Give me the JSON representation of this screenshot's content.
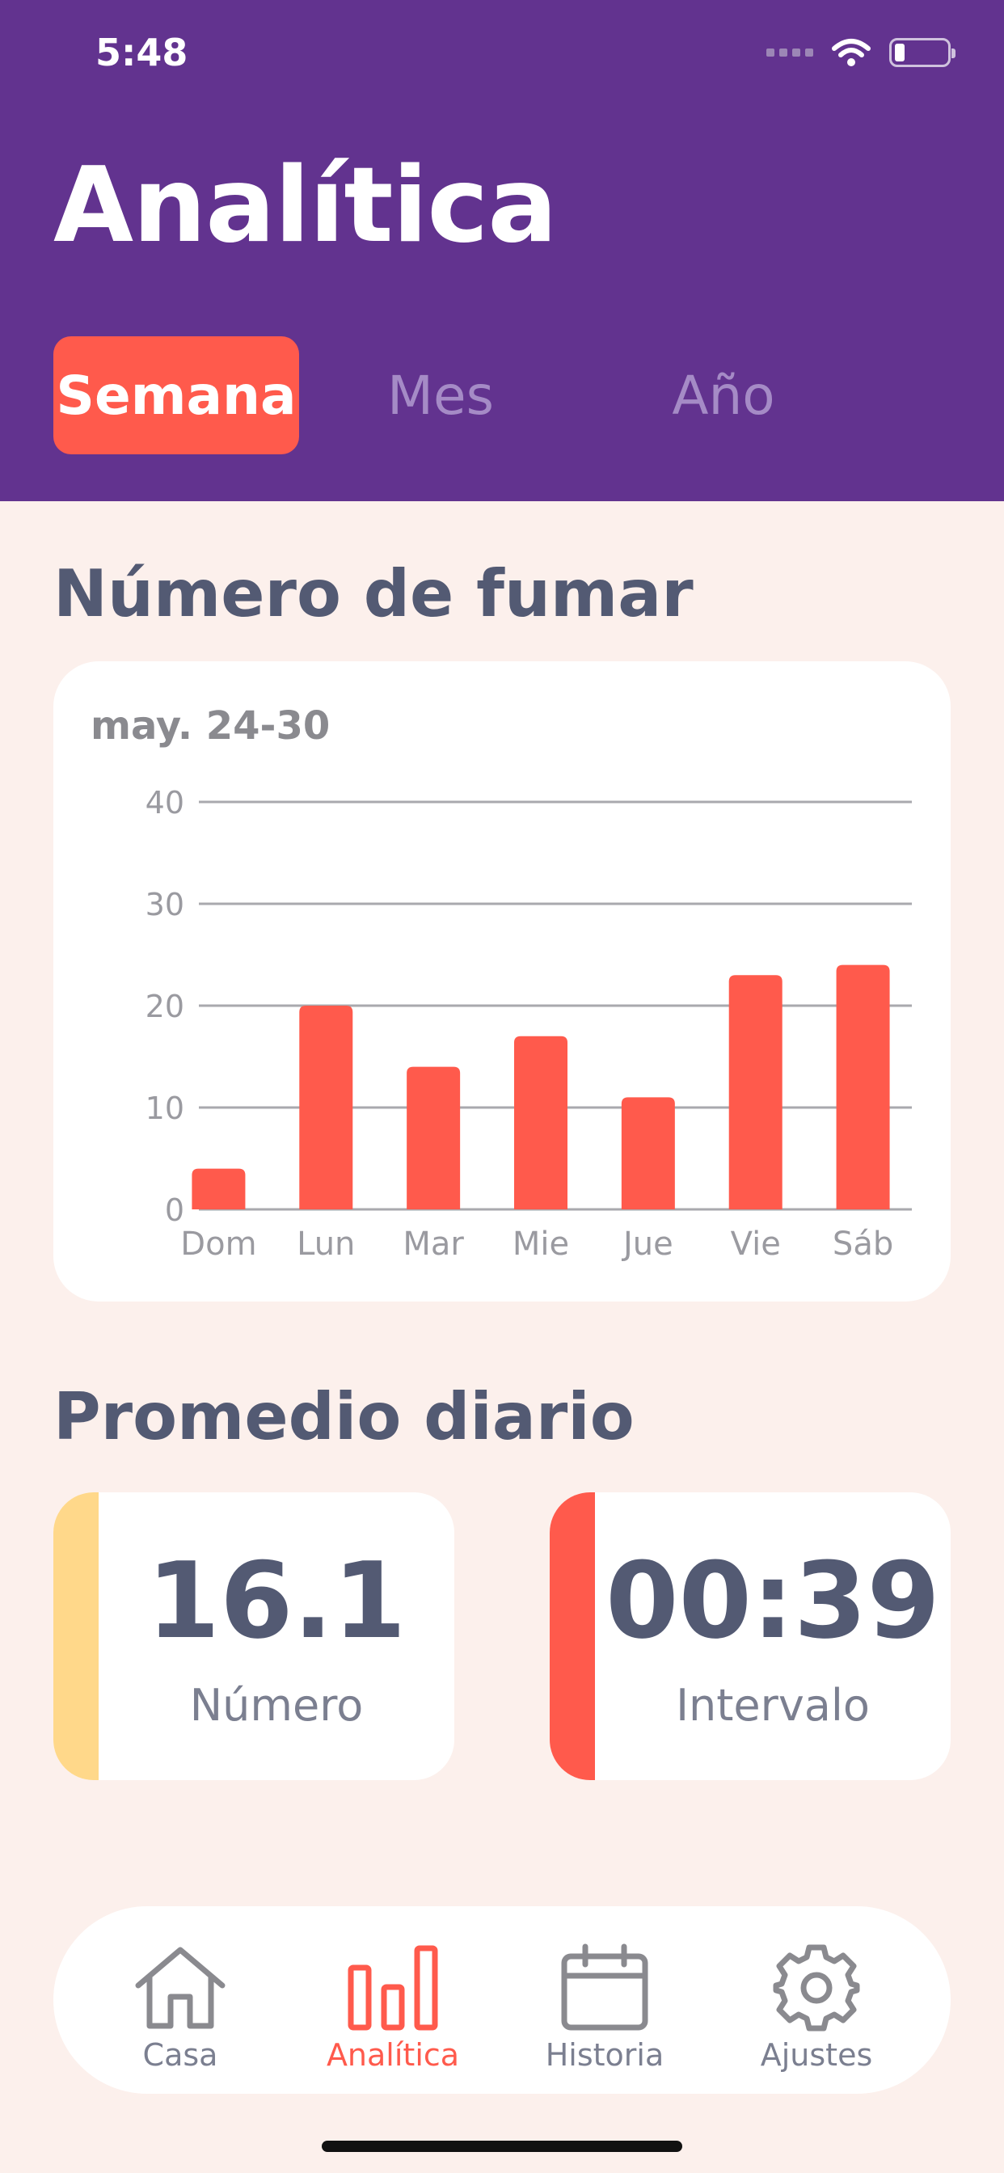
{
  "status_bar": {
    "time": "5:48"
  },
  "header": {
    "title": "Analítica"
  },
  "tabs": [
    {
      "label": "Semana",
      "active": true
    },
    {
      "label": "Mes",
      "active": false
    },
    {
      "label": "Año",
      "active": false
    }
  ],
  "smoking_section": {
    "title": "Número de fumar",
    "range": "may. 24-30"
  },
  "chart_data": {
    "type": "bar",
    "categories": [
      "Dom",
      "Lun",
      "Mar",
      "Mie",
      "Jue",
      "Vie",
      "Sáb"
    ],
    "values": [
      4,
      20,
      14,
      17,
      11,
      23,
      24
    ],
    "yticks": [
      0,
      10,
      20,
      30,
      40
    ],
    "ylim": [
      0,
      40
    ],
    "grid": true,
    "bar_color": "#FF5A4C"
  },
  "average_section": {
    "title": "Promedio diario",
    "number": {
      "value": "16.1",
      "label": "Número",
      "accent": "#FFD88A"
    },
    "interval": {
      "value": "00:39",
      "label": "Intervalo",
      "accent": "#FF5A4C"
    }
  },
  "nav": {
    "items": [
      {
        "label": "Casa",
        "icon": "home-icon",
        "active": false
      },
      {
        "label": "Analítica",
        "icon": "bar-chart-icon",
        "active": true
      },
      {
        "label": "Historia",
        "icon": "calendar-icon",
        "active": false
      },
      {
        "label": "Ajustes",
        "icon": "gear-icon",
        "active": false
      }
    ]
  },
  "colors": {
    "header": "#62338F",
    "accent": "#FF5A4C",
    "background": "#FCF0EC",
    "text": "#535A73"
  }
}
